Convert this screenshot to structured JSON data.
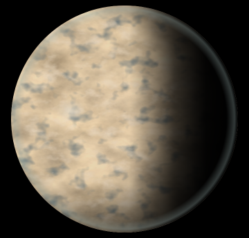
{
  "scene": {
    "subject": "planet",
    "colors": {
      "space": "#000000",
      "surface_base": "#6b5238",
      "surface_light": "#c8aa82",
      "surface_dark": "#2e2a24",
      "ocean_patch": "#2b3a3e",
      "atmosphere_rim": "#8fa3a0",
      "night_side": "#050505"
    }
  }
}
